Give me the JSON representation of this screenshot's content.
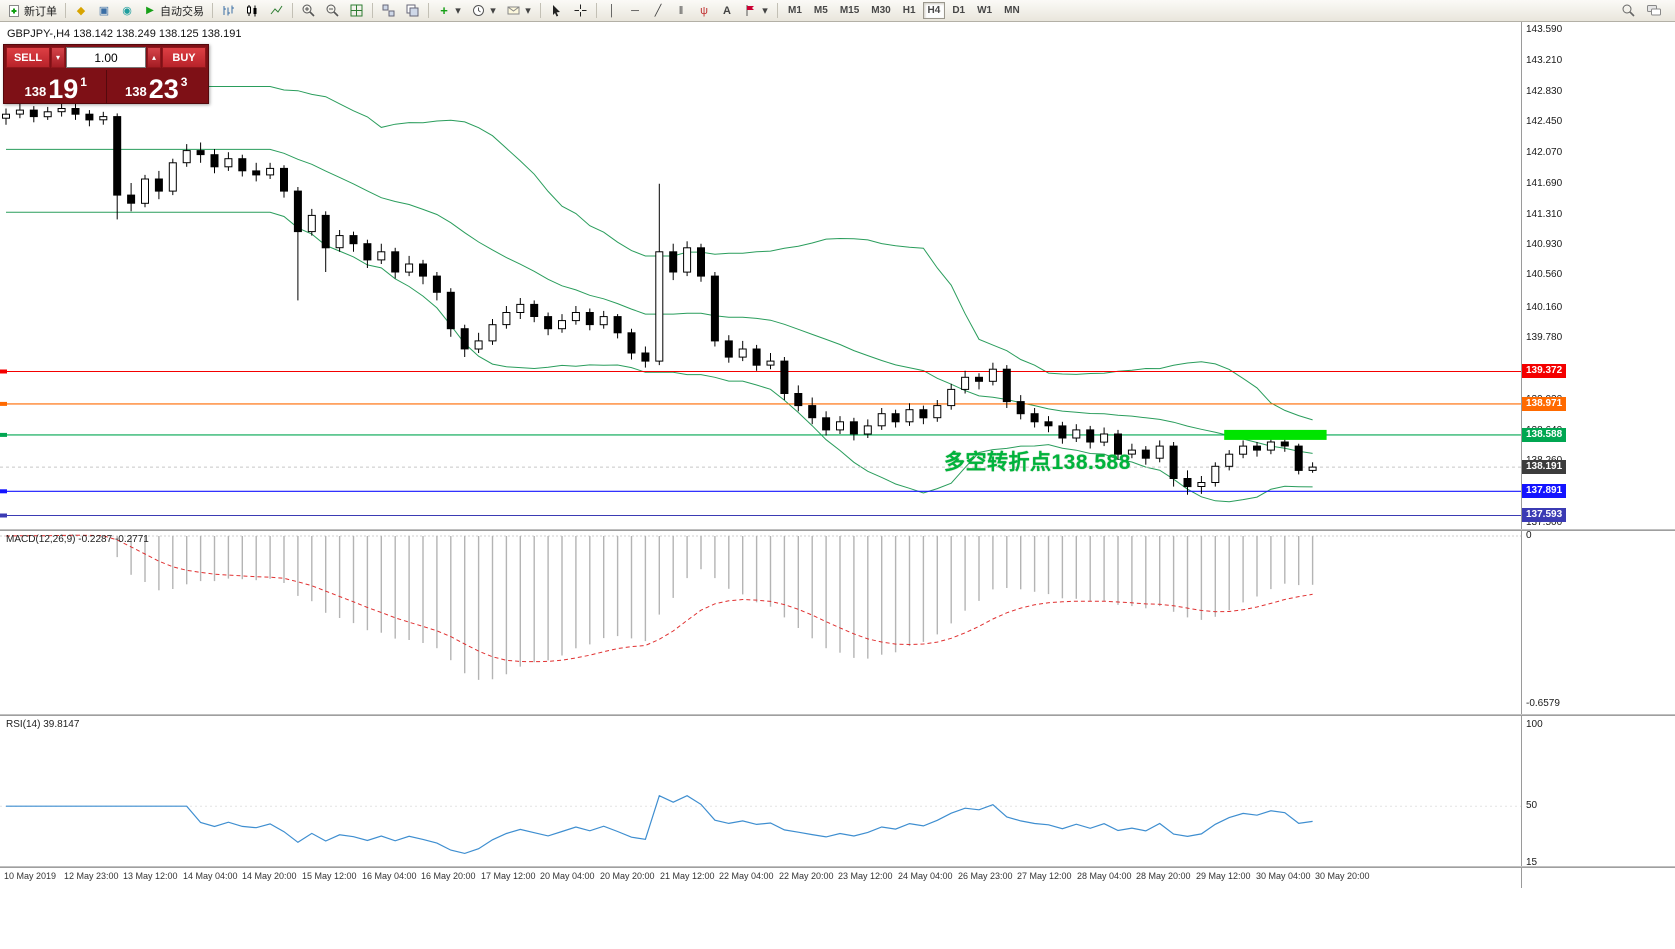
{
  "toolbar": {
    "new_order_label": "新订单",
    "auto_trading_label": "自动交易",
    "timeframes": [
      "M1",
      "M5",
      "M15",
      "M30",
      "H1",
      "H4",
      "D1",
      "W1",
      "MN"
    ],
    "active_timeframe": "H4",
    "icons": {
      "metaeditor": "◆",
      "terminal": "▣",
      "alerts": "◉",
      "autotrading": "▶",
      "vline": "│",
      "hline": "─",
      "trendline": "╱",
      "channel": "‖",
      "fibonacci": "ψ",
      "text_tool": "A",
      "indicators_plus": "+",
      "dropdown": "▾",
      "spin_up": "▴"
    }
  },
  "symbol_header": {
    "text": "GBPJPY-,H4 138.142 138.249 138.125 138.191"
  },
  "trade_panel": {
    "sell_label": "SELL",
    "buy_label": "BUY",
    "volume": "1.00",
    "panel_color": "#7e1016",
    "button_color": "#b8232a",
    "bid": {
      "prefix": "138",
      "main": "19",
      "sup": "1"
    },
    "ask": {
      "prefix": "138",
      "main": "23",
      "sup": "3"
    }
  },
  "chart": {
    "price_axis_labels": [
      "143.590",
      "143.210",
      "142.830",
      "142.450",
      "142.070",
      "141.690",
      "141.310",
      "140.930",
      "140.560",
      "140.160",
      "139.780",
      "139.400",
      "139.020",
      "138.640",
      "138.260",
      "137.880",
      "137.500"
    ],
    "hlines": [
      {
        "price": 139.372,
        "label": "139.372",
        "color": "#f40000"
      },
      {
        "price": 138.971,
        "label": "138.971",
        "color": "#ff6a00"
      },
      {
        "price": 138.588,
        "label": "138.588",
        "color": "#00a651"
      },
      {
        "price": 137.891,
        "label": "137.891",
        "color": "#1414ff"
      },
      {
        "price": 137.593,
        "label": "137.593",
        "color": "#3b3bb4"
      }
    ],
    "current_price_tag": {
      "price": 138.191,
      "label": "138.191",
      "color": "#3c3c3c"
    },
    "annotation": {
      "text": "多空转折点138.588",
      "color": "#00b33c"
    }
  },
  "macd": {
    "label": "MACD(12,26,9) -0.2287 -0.2771",
    "axis_labels": [
      "0",
      "-0.6579"
    ]
  },
  "rsi": {
    "label": "RSI(14) 39.8147",
    "axis_labels": [
      "100",
      "50",
      "15"
    ]
  },
  "time_axis": {
    "labels": [
      "10 May 2019",
      "12 May 23:00",
      "13 May 12:00",
      "14 May 04:00",
      "14 May 20:00",
      "15 May 12:00",
      "16 May 04:00",
      "16 May 20:00",
      "17 May 12:00",
      "20 May 04:00",
      "20 May 20:00",
      "21 May 12:00",
      "22 May 04:00",
      "22 May 20:00",
      "23 May 12:00",
      "24 May 04:00",
      "26 May 23:00",
      "27 May 12:00",
      "28 May 04:00",
      "28 May 20:00",
      "29 May 12:00",
      "30 May 04:00",
      "30 May 20:00"
    ]
  },
  "chart_data": {
    "type": "candlestick",
    "symbol": "GBPJPY-",
    "timeframe": "H4",
    "ohlc": {
      "open": 138.142,
      "high": 138.249,
      "low": 138.125,
      "close": 138.191
    },
    "ylim": [
      137.5,
      143.59
    ],
    "hline_levels": [
      139.372,
      138.971,
      138.588,
      137.891,
      137.593
    ],
    "highlight_bar": {
      "level": 138.588,
      "start_index": 88,
      "end_index": 94,
      "color": "#00e400"
    },
    "indicators": {
      "bollinger": {
        "period": 20,
        "deviation": 2,
        "color": "#2a9d5c"
      },
      "macd": {
        "fast": 12,
        "slow": 26,
        "signal": 9,
        "value": -0.2287,
        "signal_value": -0.2771,
        "histogram_color": "#b4b4b4",
        "signal_color": "#e03030",
        "min_axis": -0.6579
      },
      "rsi": {
        "period": 14,
        "value": 39.8147,
        "color": "#3e8ed0"
      }
    },
    "candles": [
      [
        142.5,
        142.62,
        142.42,
        142.55
      ],
      [
        142.55,
        142.68,
        142.5,
        142.6
      ],
      [
        142.6,
        142.65,
        142.45,
        142.52
      ],
      [
        142.52,
        142.64,
        142.48,
        142.58
      ],
      [
        142.58,
        142.7,
        142.52,
        142.62
      ],
      [
        142.62,
        142.68,
        142.48,
        142.55
      ],
      [
        142.55,
        142.6,
        142.4,
        142.48
      ],
      [
        142.48,
        142.58,
        142.42,
        142.52
      ],
      [
        142.52,
        142.56,
        141.25,
        141.55
      ],
      [
        141.55,
        141.7,
        141.35,
        141.45
      ],
      [
        141.45,
        141.8,
        141.4,
        141.75
      ],
      [
        141.75,
        141.85,
        141.5,
        141.6
      ],
      [
        141.6,
        142.0,
        141.55,
        141.95
      ],
      [
        141.95,
        142.18,
        141.9,
        142.1
      ],
      [
        142.1,
        142.2,
        141.95,
        142.05
      ],
      [
        142.05,
        142.12,
        141.82,
        141.9
      ],
      [
        141.9,
        142.08,
        141.85,
        142.0
      ],
      [
        142.0,
        142.05,
        141.78,
        141.85
      ],
      [
        141.85,
        141.95,
        141.72,
        141.8
      ],
      [
        141.8,
        141.95,
        141.75,
        141.88
      ],
      [
        141.88,
        141.92,
        141.52,
        141.6
      ],
      [
        141.6,
        141.65,
        140.25,
        141.1
      ],
      [
        141.1,
        141.38,
        141.05,
        141.3
      ],
      [
        141.3,
        141.35,
        140.6,
        140.9
      ],
      [
        140.9,
        141.12,
        140.85,
        141.05
      ],
      [
        141.05,
        141.1,
        140.85,
        140.95
      ],
      [
        140.95,
        141.0,
        140.65,
        140.75
      ],
      [
        140.75,
        140.95,
        140.7,
        140.85
      ],
      [
        140.85,
        140.9,
        140.52,
        140.6
      ],
      [
        140.6,
        140.8,
        140.55,
        140.7
      ],
      [
        140.7,
        140.75,
        140.45,
        140.55
      ],
      [
        140.55,
        140.6,
        140.25,
        140.35
      ],
      [
        140.35,
        140.4,
        139.8,
        139.9
      ],
      [
        139.9,
        139.95,
        139.55,
        139.65
      ],
      [
        139.65,
        139.85,
        139.6,
        139.75
      ],
      [
        139.75,
        140.02,
        139.7,
        139.95
      ],
      [
        139.95,
        140.18,
        139.9,
        140.1
      ],
      [
        140.1,
        140.28,
        140.02,
        140.2
      ],
      [
        140.2,
        140.25,
        139.98,
        140.05
      ],
      [
        140.05,
        140.1,
        139.82,
        139.9
      ],
      [
        139.9,
        140.08,
        139.85,
        140.0
      ],
      [
        140.0,
        140.18,
        139.95,
        140.1
      ],
      [
        140.1,
        140.15,
        139.88,
        139.95
      ],
      [
        139.95,
        140.12,
        139.9,
        140.05
      ],
      [
        140.05,
        140.08,
        139.78,
        139.85
      ],
      [
        139.85,
        139.9,
        139.52,
        139.6
      ],
      [
        139.6,
        139.68,
        139.42,
        139.5
      ],
      [
        139.5,
        141.69,
        139.45,
        140.85
      ],
      [
        140.85,
        140.95,
        140.5,
        140.6
      ],
      [
        140.6,
        140.98,
        140.55,
        140.9
      ],
      [
        140.9,
        140.95,
        140.48,
        140.55
      ],
      [
        140.55,
        140.6,
        139.68,
        139.75
      ],
      [
        139.75,
        139.82,
        139.48,
        139.55
      ],
      [
        139.55,
        139.75,
        139.5,
        139.65
      ],
      [
        139.65,
        139.7,
        139.38,
        139.45
      ],
      [
        139.45,
        139.6,
        139.4,
        139.5
      ],
      [
        139.5,
        139.55,
        139.02,
        139.1
      ],
      [
        139.1,
        139.2,
        138.88,
        138.95
      ],
      [
        138.95,
        139.05,
        138.72,
        138.8
      ],
      [
        138.8,
        138.88,
        138.58,
        138.65
      ],
      [
        138.65,
        138.82,
        138.6,
        138.75
      ],
      [
        138.75,
        138.8,
        138.52,
        138.6
      ],
      [
        138.6,
        138.78,
        138.55,
        138.7
      ],
      [
        138.7,
        138.92,
        138.65,
        138.85
      ],
      [
        138.85,
        138.9,
        138.68,
        138.75
      ],
      [
        138.75,
        138.98,
        138.7,
        138.9
      ],
      [
        138.9,
        138.95,
        138.72,
        138.8
      ],
      [
        138.8,
        139.02,
        138.75,
        138.95
      ],
      [
        138.95,
        139.22,
        138.9,
        139.15
      ],
      [
        139.15,
        139.38,
        139.1,
        139.3
      ],
      [
        139.3,
        139.35,
        139.15,
        139.25
      ],
      [
        139.25,
        139.48,
        139.2,
        139.4
      ],
      [
        139.4,
        139.45,
        138.92,
        139.0
      ],
      [
        139.0,
        139.08,
        138.78,
        138.85
      ],
      [
        138.85,
        138.92,
        138.68,
        138.75
      ],
      [
        138.75,
        138.82,
        138.62,
        138.7
      ],
      [
        138.7,
        138.75,
        138.48,
        138.55
      ],
      [
        138.55,
        138.72,
        138.5,
        138.65
      ],
      [
        138.65,
        138.7,
        138.42,
        138.5
      ],
      [
        138.5,
        138.68,
        138.45,
        138.6
      ],
      [
        138.6,
        138.65,
        138.28,
        138.35
      ],
      [
        138.35,
        138.48,
        138.3,
        138.4
      ],
      [
        138.4,
        138.45,
        138.22,
        138.3
      ],
      [
        138.3,
        138.52,
        138.25,
        138.45
      ],
      [
        138.45,
        138.5,
        137.95,
        138.05
      ],
      [
        138.05,
        138.15,
        137.85,
        137.95
      ],
      [
        137.95,
        138.08,
        137.86,
        138.0
      ],
      [
        138.0,
        138.25,
        137.95,
        138.2
      ],
      [
        138.2,
        138.4,
        138.15,
        138.35
      ],
      [
        138.35,
        138.52,
        138.3,
        138.45
      ],
      [
        138.45,
        138.5,
        138.32,
        138.4
      ],
      [
        138.4,
        138.56,
        138.35,
        138.5
      ],
      [
        138.5,
        138.55,
        138.38,
        138.45
      ],
      [
        138.45,
        138.48,
        138.1,
        138.15
      ],
      [
        138.15,
        138.25,
        138.12,
        138.191
      ]
    ]
  }
}
